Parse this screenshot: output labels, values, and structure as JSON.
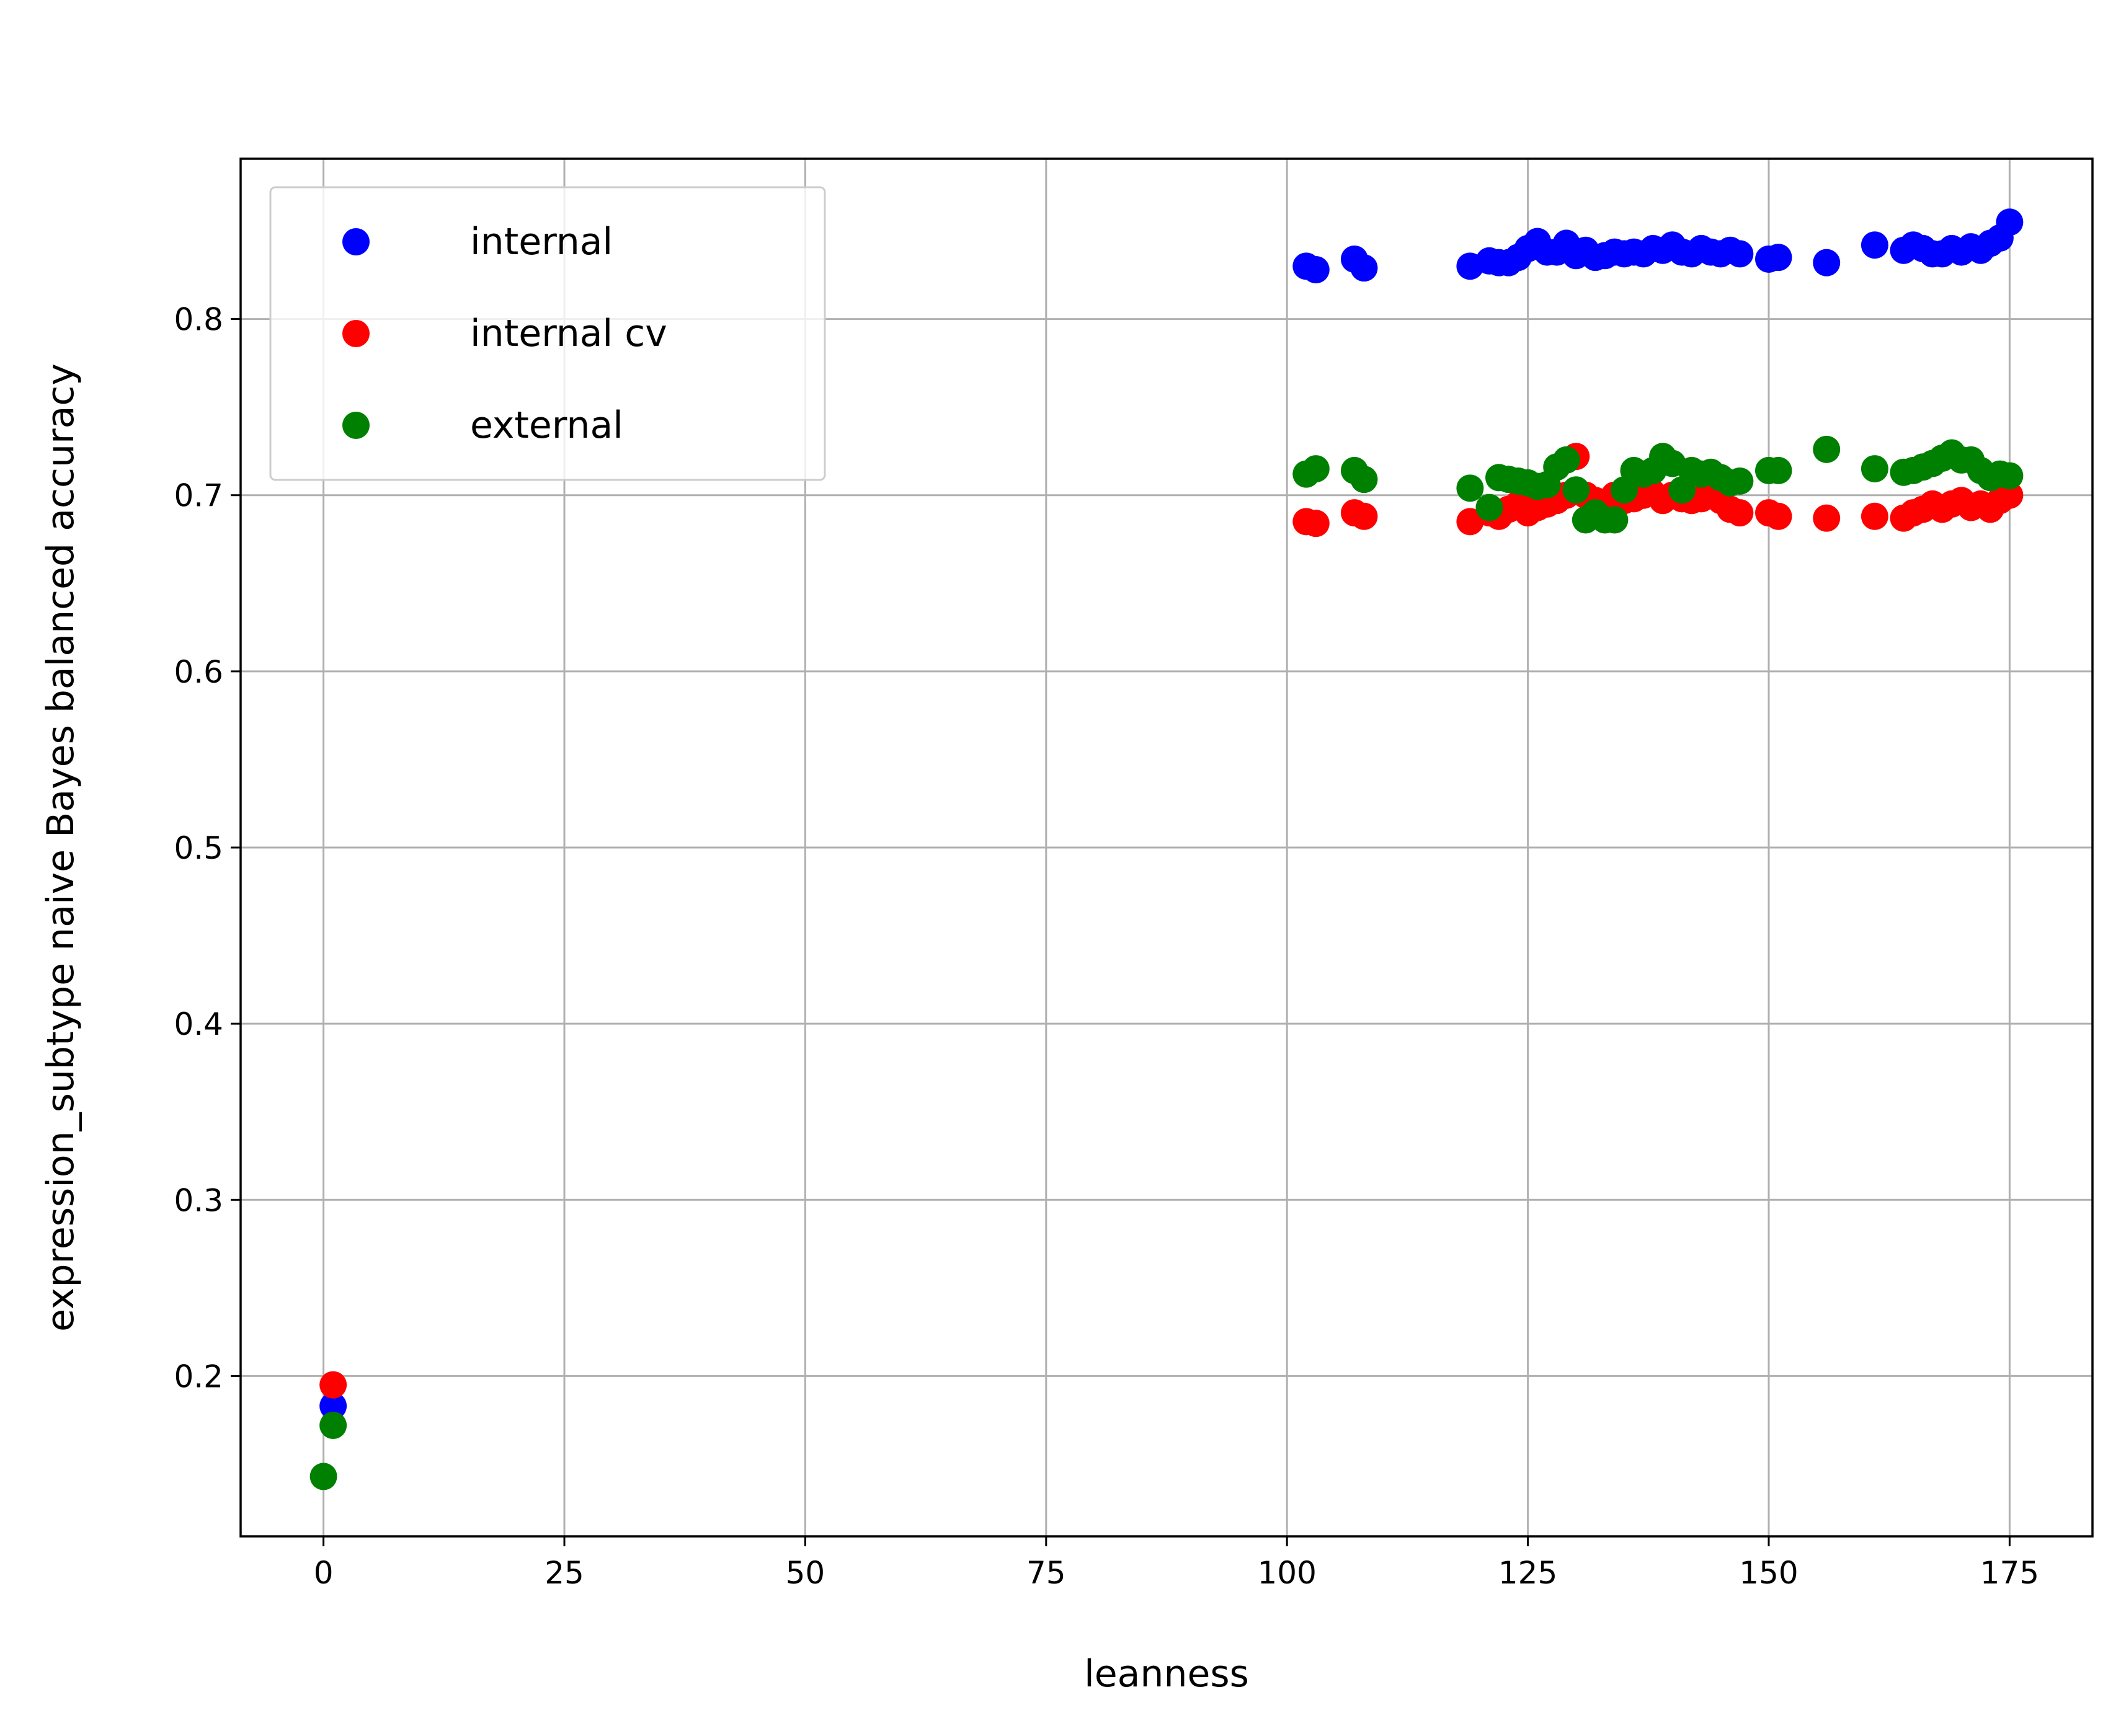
{
  "chart_data": {
    "type": "scatter",
    "title": "",
    "xlabel": "leanness",
    "ylabel": "expression_subtype naive Bayes balanced accuracy",
    "xlim": [
      -8.6,
      183.6
    ],
    "ylim": [
      0.109,
      0.891
    ],
    "x_ticks": [
      0,
      25,
      50,
      75,
      100,
      125,
      150,
      175
    ],
    "y_ticks": [
      0.2,
      0.3,
      0.4,
      0.5,
      0.6,
      0.7,
      0.8
    ],
    "grid": true,
    "legend_position": "top-left",
    "series": [
      {
        "name": "internal",
        "color": "#0000ff",
        "points": [
          [
            1,
            0.183
          ],
          [
            102,
            0.83
          ],
          [
            103,
            0.828
          ],
          [
            107,
            0.834
          ],
          [
            108,
            0.829
          ],
          [
            119,
            0.83
          ],
          [
            121,
            0.833
          ],
          [
            122,
            0.832
          ],
          [
            123,
            0.832
          ],
          [
            124,
            0.835
          ],
          [
            125,
            0.84
          ],
          [
            126,
            0.844
          ],
          [
            127,
            0.838
          ],
          [
            128,
            0.838
          ],
          [
            129,
            0.843
          ],
          [
            130,
            0.836
          ],
          [
            131,
            0.839
          ],
          [
            132,
            0.835
          ],
          [
            133,
            0.836
          ],
          [
            134,
            0.838
          ],
          [
            135,
            0.837
          ],
          [
            136,
            0.838
          ],
          [
            137,
            0.837
          ],
          [
            138,
            0.84
          ],
          [
            139,
            0.839
          ],
          [
            140,
            0.842
          ],
          [
            141,
            0.838
          ],
          [
            142,
            0.837
          ],
          [
            143,
            0.84
          ],
          [
            144,
            0.838
          ],
          [
            145,
            0.837
          ],
          [
            146,
            0.839
          ],
          [
            147,
            0.837
          ],
          [
            150,
            0.834
          ],
          [
            151,
            0.835
          ],
          [
            156,
            0.832
          ],
          [
            161,
            0.842
          ],
          [
            164,
            0.839
          ],
          [
            165,
            0.842
          ],
          [
            166,
            0.84
          ],
          [
            167,
            0.837
          ],
          [
            168,
            0.837
          ],
          [
            169,
            0.84
          ],
          [
            170,
            0.838
          ],
          [
            171,
            0.841
          ],
          [
            172,
            0.839
          ],
          [
            173,
            0.843
          ],
          [
            174,
            0.846
          ],
          [
            175,
            0.855
          ]
        ]
      },
      {
        "name": "internal cv",
        "color": "#ff0000",
        "points": [
          [
            1,
            0.195
          ],
          [
            102,
            0.685
          ],
          [
            103,
            0.684
          ],
          [
            107,
            0.69
          ],
          [
            108,
            0.688
          ],
          [
            119,
            0.685
          ],
          [
            121,
            0.69
          ],
          [
            122,
            0.688
          ],
          [
            123,
            0.692
          ],
          [
            124,
            0.695
          ],
          [
            125,
            0.69
          ],
          [
            126,
            0.693
          ],
          [
            127,
            0.695
          ],
          [
            128,
            0.697
          ],
          [
            129,
            0.7
          ],
          [
            130,
            0.722
          ],
          [
            131,
            0.7
          ],
          [
            132,
            0.697
          ],
          [
            133,
            0.695
          ],
          [
            134,
            0.7
          ],
          [
            135,
            0.697
          ],
          [
            136,
            0.698
          ],
          [
            137,
            0.7
          ],
          [
            138,
            0.701
          ],
          [
            139,
            0.697
          ],
          [
            140,
            0.7
          ],
          [
            141,
            0.698
          ],
          [
            142,
            0.697
          ],
          [
            143,
            0.698
          ],
          [
            144,
            0.7
          ],
          [
            145,
            0.697
          ],
          [
            146,
            0.692
          ],
          [
            147,
            0.69
          ],
          [
            150,
            0.69
          ],
          [
            151,
            0.688
          ],
          [
            156,
            0.687
          ],
          [
            161,
            0.688
          ],
          [
            164,
            0.687
          ],
          [
            165,
            0.69
          ],
          [
            166,
            0.692
          ],
          [
            167,
            0.695
          ],
          [
            168,
            0.692
          ],
          [
            169,
            0.695
          ],
          [
            170,
            0.697
          ],
          [
            171,
            0.693
          ],
          [
            172,
            0.695
          ],
          [
            173,
            0.692
          ],
          [
            174,
            0.697
          ],
          [
            175,
            0.7
          ]
        ]
      },
      {
        "name": "external",
        "color": "#008000",
        "points": [
          [
            0,
            0.143
          ],
          [
            1,
            0.172
          ],
          [
            102,
            0.712
          ],
          [
            103,
            0.715
          ],
          [
            107,
            0.714
          ],
          [
            108,
            0.709
          ],
          [
            119,
            0.704
          ],
          [
            121,
            0.693
          ],
          [
            122,
            0.71
          ],
          [
            123,
            0.709
          ],
          [
            124,
            0.708
          ],
          [
            125,
            0.707
          ],
          [
            126,
            0.705
          ],
          [
            127,
            0.706
          ],
          [
            128,
            0.716
          ],
          [
            129,
            0.72
          ],
          [
            130,
            0.703
          ],
          [
            131,
            0.686
          ],
          [
            132,
            0.69
          ],
          [
            133,
            0.686
          ],
          [
            134,
            0.686
          ],
          [
            135,
            0.703
          ],
          [
            136,
            0.714
          ],
          [
            137,
            0.712
          ],
          [
            138,
            0.714
          ],
          [
            139,
            0.722
          ],
          [
            140,
            0.718
          ],
          [
            141,
            0.703
          ],
          [
            142,
            0.714
          ],
          [
            143,
            0.712
          ],
          [
            144,
            0.713
          ],
          [
            145,
            0.71
          ],
          [
            146,
            0.707
          ],
          [
            147,
            0.708
          ],
          [
            150,
            0.714
          ],
          [
            151,
            0.714
          ],
          [
            156,
            0.726
          ],
          [
            161,
            0.715
          ],
          [
            164,
            0.713
          ],
          [
            165,
            0.714
          ],
          [
            166,
            0.716
          ],
          [
            167,
            0.718
          ],
          [
            168,
            0.721
          ],
          [
            169,
            0.724
          ],
          [
            170,
            0.72
          ],
          [
            171,
            0.72
          ],
          [
            172,
            0.714
          ],
          [
            173,
            0.71
          ],
          [
            174,
            0.712
          ],
          [
            175,
            0.711
          ]
        ]
      }
    ]
  }
}
